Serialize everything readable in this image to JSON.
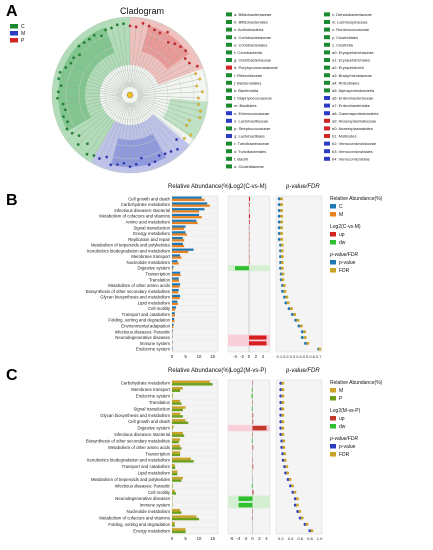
{
  "panel_a": {
    "letter": "A",
    "title": "Cladogram",
    "legend": [
      {
        "label": "C",
        "color": "#1a8a2e"
      },
      {
        "label": "M",
        "color": "#2b3bc4"
      },
      {
        "label": "P",
        "color": "#d42323"
      }
    ],
    "taxa_col1": [
      {
        "label": "a: Bifidobacteriaceae",
        "color": "#1a8a2e"
      },
      {
        "label": "b: Bifidobacteriales",
        "color": "#1a8a2e"
      },
      {
        "label": "c: Actinobacteria",
        "color": "#1a8a2e"
      },
      {
        "label": "d: Coriobacteriaceae",
        "color": "#1a8a2e"
      },
      {
        "label": "e: Coriobacteriales",
        "color": "#1a8a2e"
      },
      {
        "label": "f: Coriobacteriia",
        "color": "#1a8a2e"
      },
      {
        "label": "g: Odoribacteriaceae",
        "color": "#1a8a2e"
      },
      {
        "label": "h: Porphyromonadaceae",
        "color": "#d42323"
      },
      {
        "label": "i: Rikenellaceae",
        "color": "#1a8a2e"
      },
      {
        "label": "j: Bacteroidales",
        "color": "#1a8a2e"
      },
      {
        "label": "k: Bacteroidia",
        "color": "#1a8a2e"
      },
      {
        "label": "l: Staphylococcaceae",
        "color": "#1a8a2e"
      },
      {
        "label": "m: Bacillales",
        "color": "#1a8a2e"
      },
      {
        "label": "n: Enterococcaceae",
        "color": "#2b3bc4"
      },
      {
        "label": "o: Lactobacillaceae",
        "color": "#2b3bc4"
      },
      {
        "label": "p: Streptococcaceae",
        "color": "#1a8a2e"
      },
      {
        "label": "q: Lactobacillales",
        "color": "#2b3bc4"
      },
      {
        "label": "r: Turicibacteraceae",
        "color": "#1a8a2e"
      },
      {
        "label": "s: Turicibacterales",
        "color": "#1a8a2e"
      },
      {
        "label": "t: Bacilli",
        "color": "#1a8a2e"
      },
      {
        "label": "u: Clostridiaceae",
        "color": "#1a8a2e"
      }
    ],
    "taxa_col2": [
      {
        "label": "v: Dehalobacteriaceae",
        "color": "#1a8a2e"
      },
      {
        "label": "w: Lachnospiraceae",
        "color": "#1a8a2e"
      },
      {
        "label": "x: Ruminococcaceae",
        "color": "#1a8a2e"
      },
      {
        "label": "y: Clostridiales",
        "color": "#1a8a2e"
      },
      {
        "label": "z: Clostridia",
        "color": "#1a8a2e"
      },
      {
        "label": "a0: Erysipelotrichaceae",
        "color": "#1a8a2e"
      },
      {
        "label": "a1: Erysipelotrichales",
        "color": "#1a8a2e"
      },
      {
        "label": "a2: Erysipelotrichi",
        "color": "#1a8a2e"
      },
      {
        "label": "a3: Bradyrhizobiaceae",
        "color": "#1a8a2e"
      },
      {
        "label": "a4: Rhizobiales",
        "color": "#1a8a2e"
      },
      {
        "label": "a5: Alphaproteobacteria",
        "color": "#1a8a2e"
      },
      {
        "label": "a6: Enterobacteriaceae",
        "color": "#2b3bc4"
      },
      {
        "label": "a7: Enterobacteriales",
        "color": "#2b3bc4"
      },
      {
        "label": "a8: Gammaproteobacteria",
        "color": "#2b3bc4"
      },
      {
        "label": "a9: Anaeroplasmataceae",
        "color": "#d42323"
      },
      {
        "label": "b0: Anaeroplasmatales",
        "color": "#d42323"
      },
      {
        "label": "b1: Mollicutes",
        "color": "#d42323"
      },
      {
        "label": "b2: Verrucomicrobiaceae",
        "color": "#2b3bc4"
      },
      {
        "label": "b3: Verrucomicrobiales",
        "color": "#2b3bc4"
      },
      {
        "label": "b4: Verrucomicrobiae",
        "color": "#2b3bc4"
      }
    ]
  },
  "panel_b": {
    "letter": "B",
    "header_abund": "Relative Abundance(%)",
    "header_log": "Log2(C-vs-M)",
    "header_p": "p-value/FDR",
    "legend_abund_title": "Relative Abundance(%)",
    "legend_abund": [
      {
        "label": "C",
        "color": "#1f77b4"
      },
      {
        "label": "M",
        "color": "#e8821e"
      }
    ],
    "legend_log_title": "Log2(C-vs-M)",
    "legend_log": [
      {
        "label": "up",
        "color": "#d62020"
      },
      {
        "label": "dw",
        "color": "#2fbf2f"
      }
    ],
    "legend_p_title": "p-value/FDR",
    "legend_p": [
      {
        "label": "p-value",
        "color": "#1f77b4"
      },
      {
        "label": "FDR",
        "color": "#c9a227"
      }
    ],
    "abund_ticks": [
      "0",
      "5",
      "10",
      "15"
    ],
    "log_ticks": [
      "-4",
      "-2",
      "0",
      "2",
      "4"
    ],
    "p_ticks": [
      "0.1",
      "0.2",
      "0.3",
      "0.4",
      "0.5",
      "0.6",
      "0.7"
    ]
  },
  "panel_c": {
    "letter": "C",
    "header_abund": "Relative Abundance(%)",
    "header_log": "Log2(M-vs-P)",
    "header_p": "p-value/FDR",
    "legend_abund_title": "Relative Abundance(%)",
    "legend_abund": [
      {
        "label": "M",
        "color": "#c9a227"
      },
      {
        "label": "P",
        "color": "#6aa01e"
      }
    ],
    "legend_log_title": "Log2(M-vs-P)",
    "legend_log": [
      {
        "label": "up",
        "color": "#c0392b"
      },
      {
        "label": "dw",
        "color": "#2fbf2f"
      }
    ],
    "legend_p_title": "p-value/FDR",
    "legend_p": [
      {
        "label": "p-value",
        "color": "#2b3bc4"
      },
      {
        "label": "FDR",
        "color": "#c9a227"
      }
    ],
    "abund_ticks": [
      "0",
      "5",
      "10",
      "15"
    ],
    "log_ticks": [
      "-6",
      "-4",
      "-2",
      "0",
      "2",
      "4"
    ],
    "p_ticks": [
      "0.2",
      "0.4",
      "0.6",
      "0.8",
      "1.0"
    ]
  },
  "chart_data": [
    {
      "type": "bar",
      "panel": "B",
      "categories": [
        "Cell growth and death",
        "Carbohydrate metabolism",
        "Infectious diseases: Bacterial",
        "Metabolism of cofactors and vitamins",
        "Amino acid metabolism",
        "Signal transduction",
        "Energy metabolism",
        "Replication and repair",
        "Metabolism of terpenoids and polyketides",
        "Xenobiotics biodegradation and metabolism",
        "Membrane transport",
        "Nucleotide metabolism",
        "Digestive system",
        "Transcription",
        "Translation",
        "Metabolism of other amino acids",
        "Biosynthesis of other secondary metabolites",
        "Glycan biosynthesis and metabolism",
        "Lipid metabolism",
        "Cell motility",
        "Transport and catabolism",
        "Folding, sorting and degradation",
        "Environmental adaptation",
        "Infectious diseases: Parasitic",
        "Neurodegenerative diseases",
        "Immune system",
        "Endocrine system"
      ],
      "series": [
        {
          "name": "C",
          "values": [
            11,
            13,
            12,
            10,
            9,
            5,
            5,
            4,
            4,
            8,
            3,
            2,
            0.5,
            3,
            2.5,
            3,
            2.5,
            3,
            2,
            1.5,
            1,
            0.8,
            0.6,
            0.3,
            0.2,
            0.2,
            0.2
          ]
        },
        {
          "name": "M",
          "values": [
            12,
            14,
            10,
            11,
            9.5,
            4.5,
            5.5,
            4.5,
            4.5,
            6,
            3.5,
            2.5,
            0.4,
            3.2,
            2.6,
            2.8,
            2.3,
            2.8,
            2.2,
            1.2,
            1.1,
            0.9,
            0.5,
            0.2,
            0.1,
            0.1,
            0.2
          ]
        }
      ],
      "log2": [
        0.3,
        0.2,
        0.1,
        0.3,
        0.2,
        0.1,
        0.1,
        0.1,
        0.1,
        0.1,
        0.1,
        0.1,
        -4,
        0,
        0,
        0,
        0,
        0,
        0,
        0,
        0,
        0,
        0,
        0,
        5,
        5,
        0
      ],
      "pvalue": [
        0.1,
        0.1,
        0.1,
        0.1,
        0.1,
        0.1,
        0.1,
        0.1,
        0.12,
        0.12,
        0.12,
        0.12,
        0.12,
        0.13,
        0.13,
        0.15,
        0.15,
        0.18,
        0.2,
        0.25,
        0.3,
        0.35,
        0.4,
        0.45,
        0.45,
        0.5,
        0.7
      ],
      "fdr": [
        0.12,
        0.12,
        0.12,
        0.12,
        0.12,
        0.12,
        0.12,
        0.12,
        0.13,
        0.13,
        0.13,
        0.13,
        0.13,
        0.14,
        0.14,
        0.16,
        0.17,
        0.2,
        0.22,
        0.27,
        0.32,
        0.37,
        0.42,
        0.47,
        0.48,
        0.52,
        0.7
      ],
      "xlim_abund": [
        0,
        17
      ],
      "xlim_log": [
        -6,
        6
      ],
      "xlim_p": [
        0.05,
        0.75
      ]
    },
    {
      "type": "bar",
      "panel": "C",
      "categories": [
        "Carbohydrate metabolism",
        "Membrane transport",
        "Endocrine system",
        "Translation",
        "Signal transduction",
        "Glycan biosynthesis and metabolism",
        "Cell growth and death",
        "Digestive system",
        "Infectious diseases: Bacterial",
        "Biosynthesis of other secondary metabolites",
        "Metabolism of other amino acids",
        "Transcription",
        "Xenobiotics biodegradation and metabolism",
        "Transport and catabolism",
        "Lipid metabolism",
        "Metabolism of terpenoids and polyketides",
        "Infectious diseases: Parasitic",
        "Cell motility",
        "Neurodegenerative diseases",
        "Immune system",
        "Nucleotide metabolism",
        "Metabolism of cofactors and vitamins",
        "Folding, sorting and degradation",
        "Energy metabolism"
      ],
      "series": [
        {
          "name": "M",
          "values": [
            14,
            4,
            0.3,
            3,
            5,
            3,
            5,
            0.6,
            4,
            3,
            3,
            3,
            7,
            1,
            2,
            4,
            0.3,
            1,
            0.2,
            0.2,
            3,
            9,
            1,
            5
          ]
        },
        {
          "name": "P",
          "values": [
            15,
            3,
            0.2,
            3.5,
            4,
            4,
            6,
            0.2,
            4.5,
            2.5,
            3.5,
            3,
            8,
            1.2,
            2,
            3.5,
            0.2,
            1.5,
            0.1,
            0.1,
            3.5,
            10,
            1,
            5
          ]
        }
      ],
      "log2": [
        0.1,
        -0.2,
        -0.3,
        0.1,
        -0.2,
        0.2,
        0.2,
        4,
        0.1,
        -0.2,
        0.2,
        0,
        0.1,
        0.2,
        0,
        -0.1,
        -0.2,
        0.3,
        -4,
        -4,
        0.1,
        0.1,
        0,
        0
      ],
      "pvalue": [
        0.2,
        0.2,
        0.2,
        0.2,
        0.2,
        0.2,
        0.2,
        0.2,
        0.2,
        0.22,
        0.22,
        0.24,
        0.25,
        0.28,
        0.3,
        0.35,
        0.4,
        0.45,
        0.5,
        0.5,
        0.55,
        0.6,
        0.7,
        0.8
      ],
      "fdr": [
        0.22,
        0.22,
        0.22,
        0.22,
        0.22,
        0.22,
        0.22,
        0.22,
        0.22,
        0.24,
        0.24,
        0.26,
        0.27,
        0.3,
        0.32,
        0.37,
        0.42,
        0.47,
        0.52,
        0.52,
        0.57,
        0.62,
        0.72,
        0.82
      ],
      "xlim_abund": [
        0,
        17
      ],
      "xlim_log": [
        -7,
        5
      ],
      "xlim_p": [
        0.1,
        1.05
      ]
    }
  ]
}
